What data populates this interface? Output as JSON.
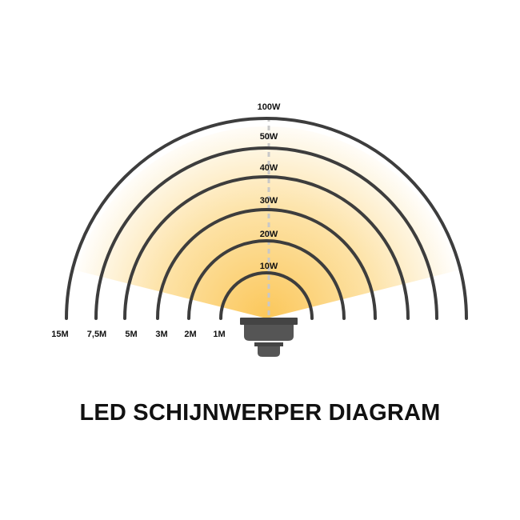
{
  "title": "LED SCHIJNWERPER DIAGRAM",
  "rings": [
    {
      "power": "10W",
      "distance": "1M"
    },
    {
      "power": "20W",
      "distance": "2M"
    },
    {
      "power": "30W",
      "distance": "3M"
    },
    {
      "power": "40W",
      "distance": "5M"
    },
    {
      "power": "50W",
      "distance": "7,5M"
    },
    {
      "power": "100W",
      "distance": "15M"
    }
  ],
  "colors": {
    "arc": "#3d3d3d",
    "beam_inner": "#fbc75a",
    "beam_outer": "#ffffff",
    "lamp": "#555555",
    "lamp_plate": "#444444",
    "center_line": "#c8c8c8"
  }
}
